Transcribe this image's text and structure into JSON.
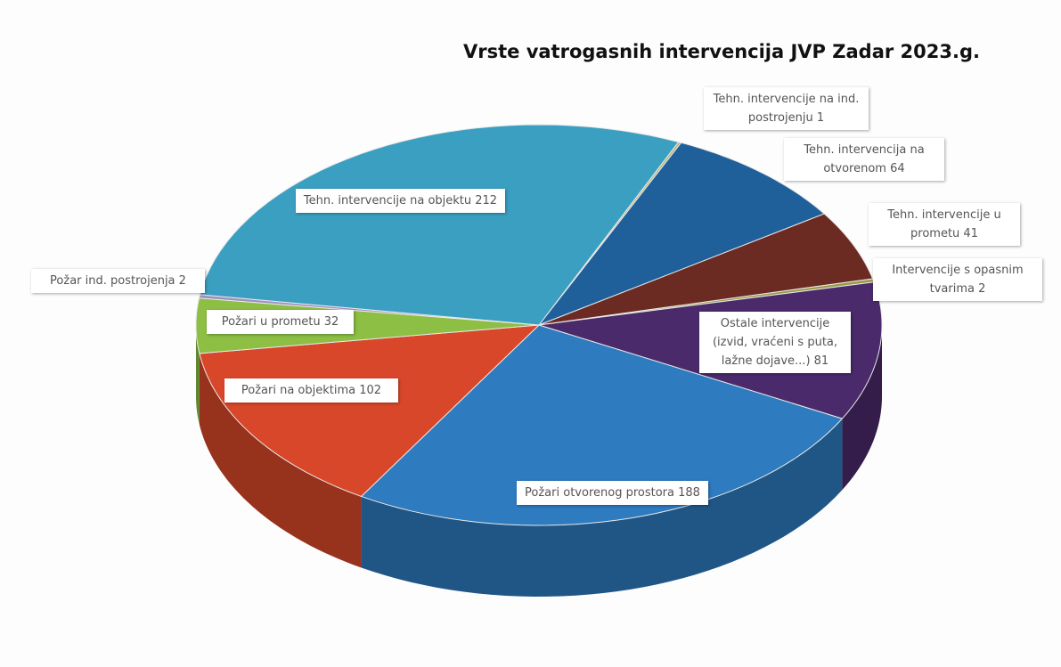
{
  "chart_data": {
    "type": "pie",
    "title": "Vrste vatrogasnih intervencija JVP Zadar 2023.g.",
    "categories": [
      "Tehn. intervencije na ind. postrojenju",
      "Tehn. intervencija na otvorenom",
      "Tehn. intervencije u prometu",
      "Intervencije s opasnim tvarima",
      "Ostale intervencije (izvid, vraćeni s puta, lažne dojave...)",
      "Požari otvorenog prostora",
      "Požari na objektima",
      "Požari u prometu",
      "Požar ind. postrojenja",
      "Tehn. intervencije na objektu"
    ],
    "values": [
      1,
      64,
      41,
      2,
      81,
      188,
      102,
      32,
      2,
      212
    ],
    "colors": [
      "#b9b77a",
      "#1f5f9a",
      "#6b2a22",
      "#9a9a4a",
      "#4a2a6a",
      "#2e7bc0",
      "#d8472a",
      "#8cbf44",
      "#a090c0",
      "#3a9fc0"
    ]
  }
}
